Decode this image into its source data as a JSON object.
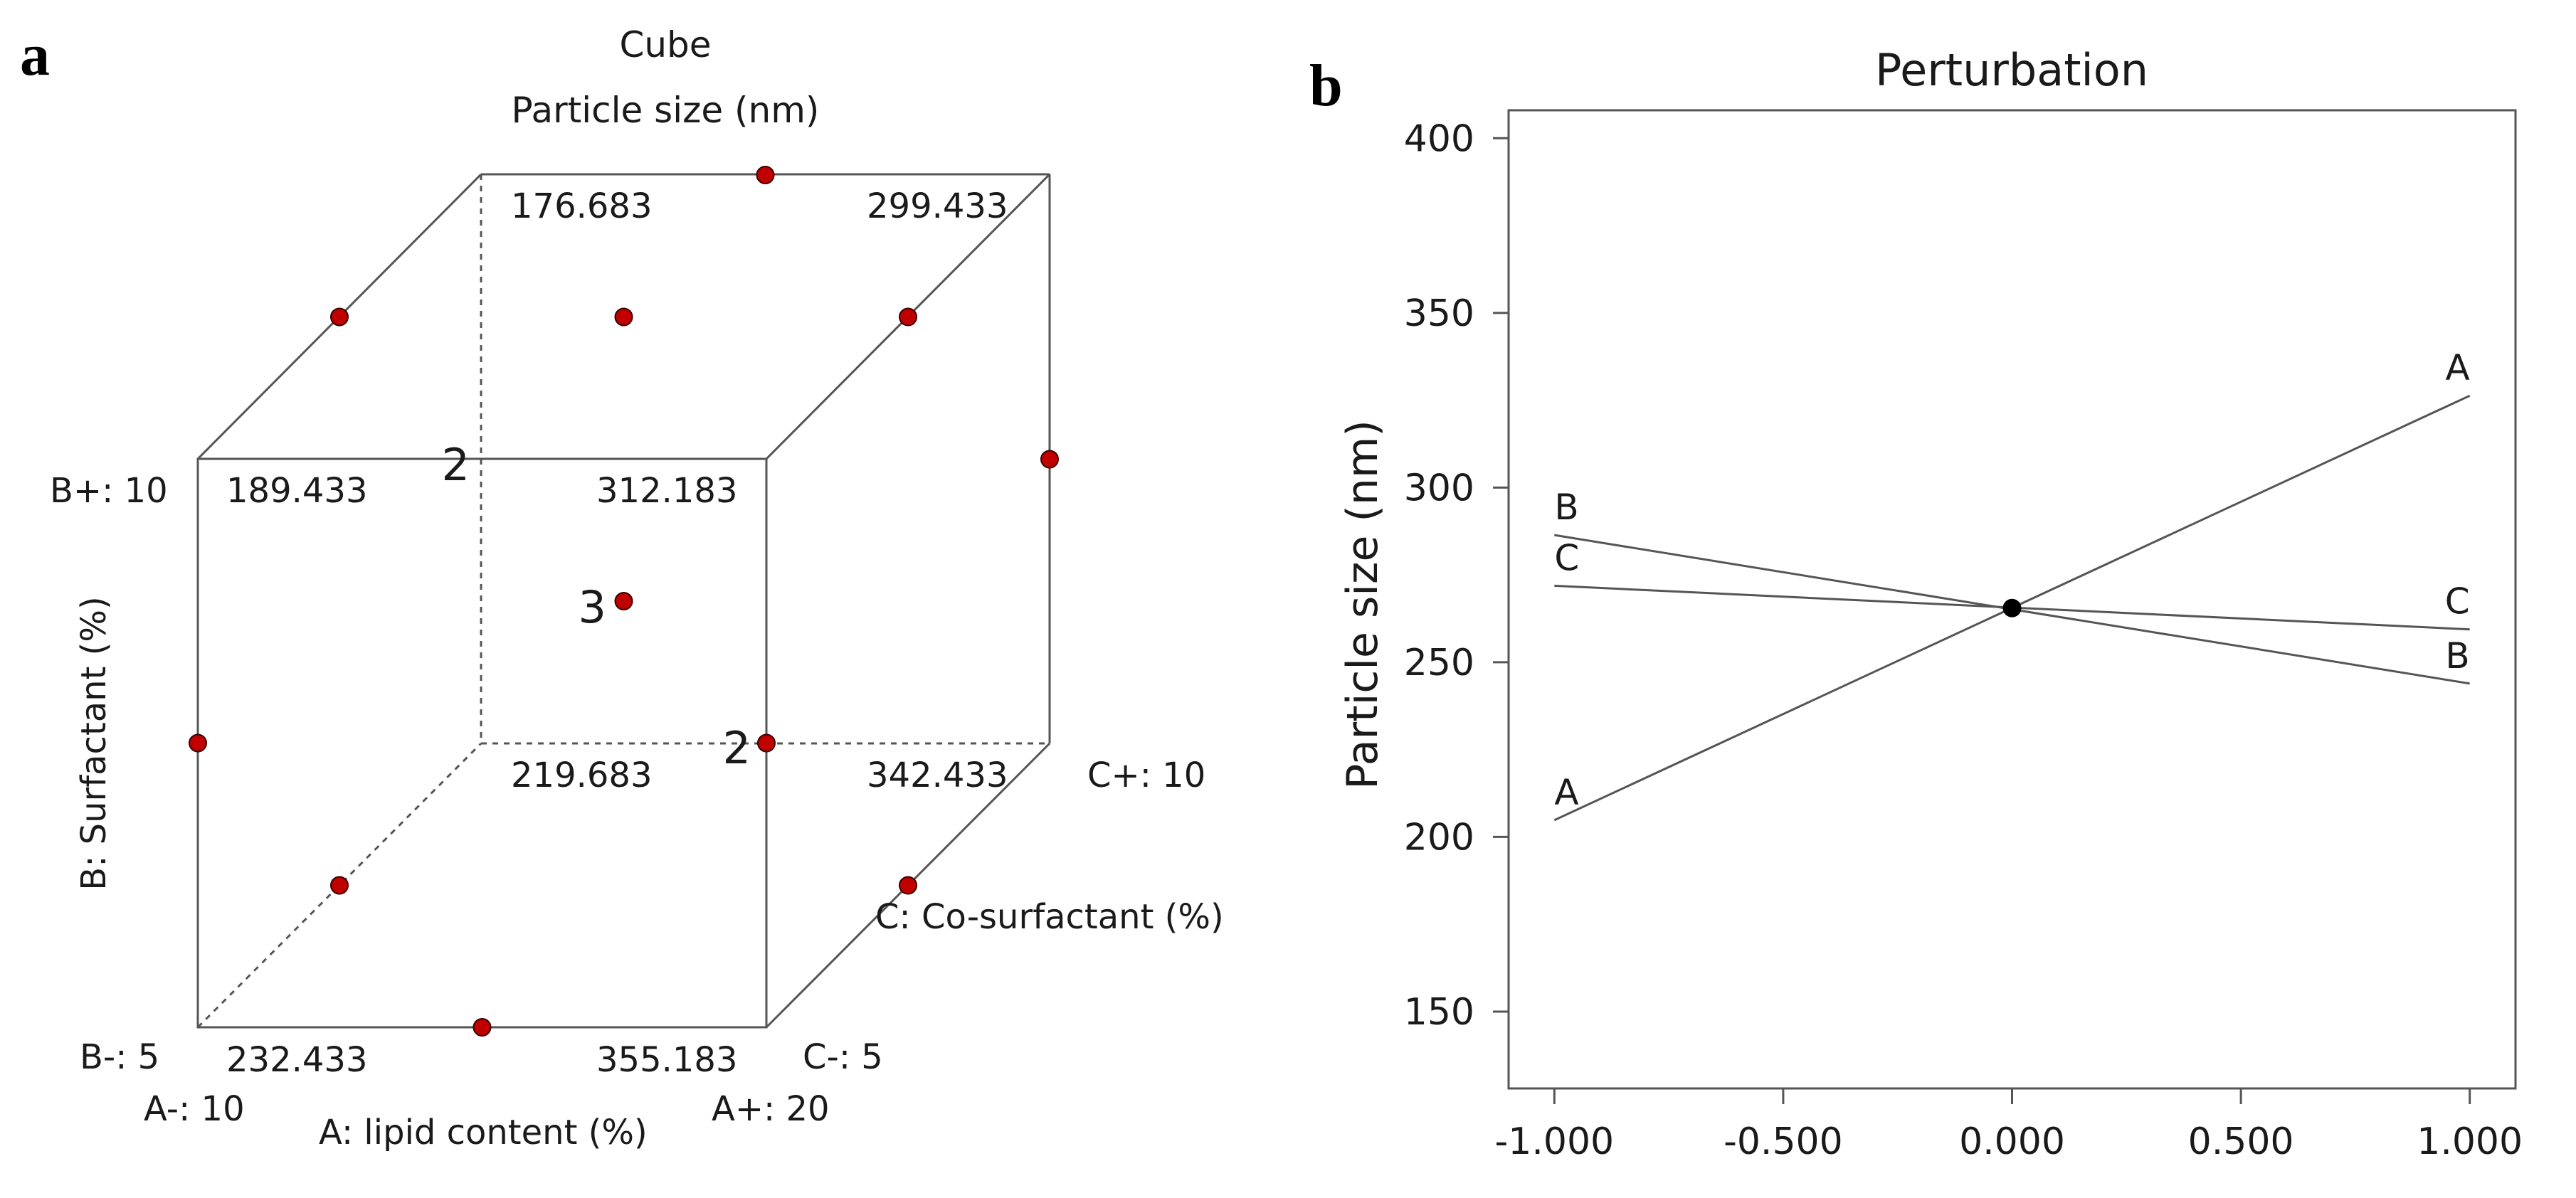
{
  "chart_data": [
    {
      "type": "cube",
      "panel_label": "a",
      "title": "Cube",
      "subtitle": "Particle size (nm)",
      "factors": {
        "A": {
          "label": "A: lipid content (%)",
          "low": "A-: 10",
          "high": "A+: 20"
        },
        "B": {
          "label": "B: Surfactant (%)",
          "low": "B-: 5",
          "high": "B+: 10"
        },
        "C": {
          "label": "C: Co-surfactant (%)",
          "low": "C-: 5",
          "high": "C+: 10"
        }
      },
      "corner_values": [
        {
          "A": -1,
          "B": -1,
          "C": -1,
          "value": "232.433"
        },
        {
          "A": 1,
          "B": -1,
          "C": -1,
          "value": "355.183"
        },
        {
          "A": -1,
          "B": 1,
          "C": -1,
          "value": "189.433"
        },
        {
          "A": 1,
          "B": 1,
          "C": -1,
          "value": "312.183"
        },
        {
          "A": -1,
          "B": -1,
          "C": 1,
          "value": "219.683"
        },
        {
          "A": 1,
          "B": -1,
          "C": 1,
          "value": "342.433"
        },
        {
          "A": -1,
          "B": 1,
          "C": 1,
          "value": "176.683"
        },
        {
          "A": 1,
          "B": 1,
          "C": 1,
          "value": "299.433"
        }
      ],
      "design_points": [
        {
          "A": 0,
          "B": -1,
          "C": -1
        },
        {
          "A": -1,
          "B": 0,
          "C": -1
        },
        {
          "A": 1,
          "B": 0,
          "C": -1,
          "replicates": "2"
        },
        {
          "A": 0,
          "B": 1,
          "C": 1
        },
        {
          "A": 1,
          "B": 0,
          "C": 1
        },
        {
          "A": -1,
          "B": 1,
          "C": 0
        },
        {
          "A": 1,
          "B": 1,
          "C": 0
        },
        {
          "A": -1,
          "B": -1,
          "C": 0
        },
        {
          "A": 1,
          "B": -1,
          "C": 0
        },
        {
          "A": 0,
          "B": 1,
          "C": 0,
          "replicates": "2"
        },
        {
          "A": 0,
          "B": 0,
          "C": 0,
          "replicates": "3"
        }
      ],
      "point_color": "#c00000"
    },
    {
      "type": "line",
      "panel_label": "b",
      "title": "Perturbation",
      "xlabel": "",
      "ylabel": "Particle size (nm)",
      "xlim": [
        -1.1,
        1.1
      ],
      "ylim": [
        128,
        408
      ],
      "xticks": [
        "-1.000",
        "-0.500",
        "0.000",
        "0.500",
        "1.000"
      ],
      "yticks": [
        "150",
        "200",
        "250",
        "300",
        "350",
        "400"
      ],
      "series": [
        {
          "name": "A",
          "x": [
            -1,
            1
          ],
          "y": [
            204.8,
            326.3
          ]
        },
        {
          "name": "B",
          "x": [
            -1,
            1
          ],
          "y": [
            286.4,
            243.9
          ]
        },
        {
          "name": "C",
          "x": [
            -1,
            1
          ],
          "y": [
            271.9,
            259.4
          ]
        }
      ],
      "reference_point": {
        "x": 0,
        "y": 265.5
      },
      "line_color": "#555555"
    }
  ]
}
